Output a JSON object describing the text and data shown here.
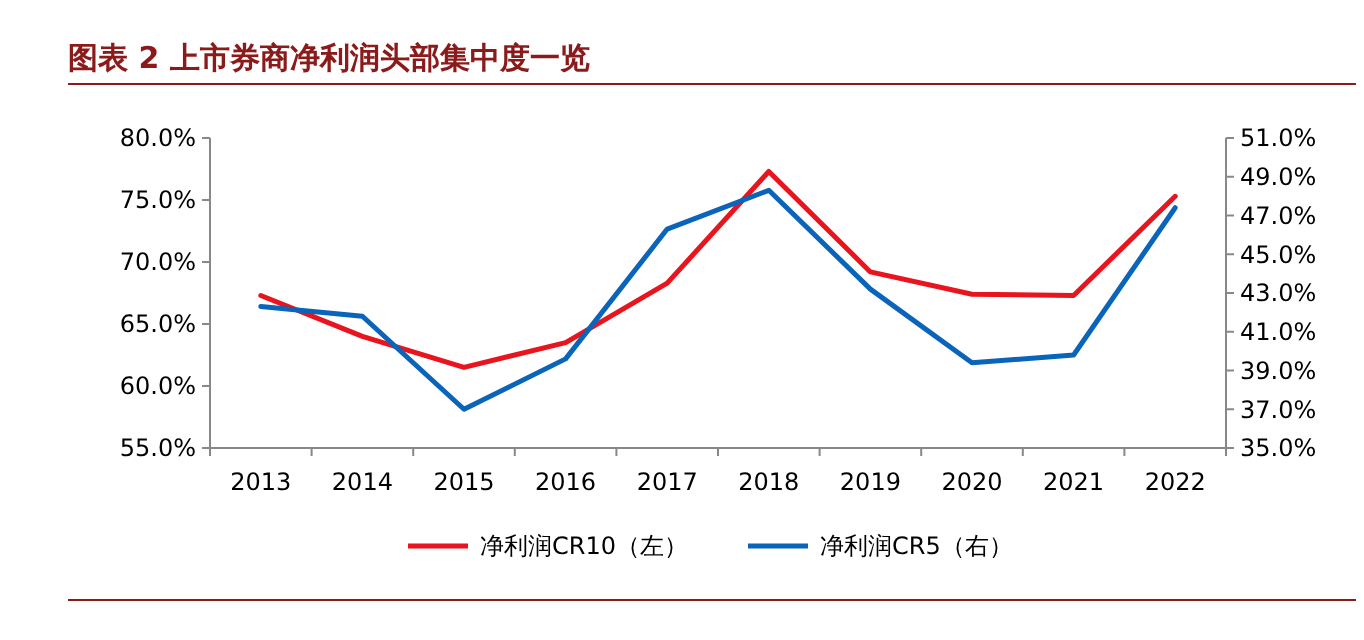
{
  "chart_data": {
    "type": "line",
    "title": "图表 2   上市券商净利润头部集中度一览",
    "categories": [
      "2013",
      "2014",
      "2015",
      "2016",
      "2017",
      "2018",
      "2019",
      "2020",
      "2021",
      "2022"
    ],
    "series": [
      {
        "name": "净利润CR10（左）",
        "color": "#e8141e",
        "values": [
          67.3,
          64.0,
          61.5,
          63.5,
          68.3,
          77.3,
          69.2,
          67.4,
          67.3,
          75.3
        ]
      },
      {
        "name": "净利润CR5（右）",
        "color": "#0a64b9",
        "axis": "y2",
        "values": [
          42.3,
          41.8,
          37.0,
          39.6,
          46.3,
          48.3,
          43.2,
          39.4,
          39.8,
          47.4
        ]
      }
    ],
    "ylim": [
      55,
      80
    ],
    "yticks": [
      {
        "value": 55,
        "label": "55.0%"
      },
      {
        "value": 60,
        "label": "60.0%"
      },
      {
        "value": 65,
        "label": "65.0%"
      },
      {
        "value": 70,
        "label": "70.0%"
      },
      {
        "value": 75,
        "label": "75.0%"
      },
      {
        "value": 80,
        "label": "80.0%"
      }
    ],
    "y2lim": [
      35,
      51
    ],
    "y2ticks": [
      {
        "value": 35,
        "label": "35.0%"
      },
      {
        "value": 37,
        "label": "37.0%"
      },
      {
        "value": 39,
        "label": "39.0%"
      },
      {
        "value": 41,
        "label": "41.0%"
      },
      {
        "value": 43,
        "label": "43.0%"
      },
      {
        "value": 45,
        "label": "45.0%"
      },
      {
        "value": 47,
        "label": "47.0%"
      },
      {
        "value": 49,
        "label": "49.0%"
      },
      {
        "value": 51,
        "label": "51.0%"
      }
    ],
    "grid": false,
    "legend": "bottom",
    "marker": "none",
    "line_style": "solid"
  }
}
